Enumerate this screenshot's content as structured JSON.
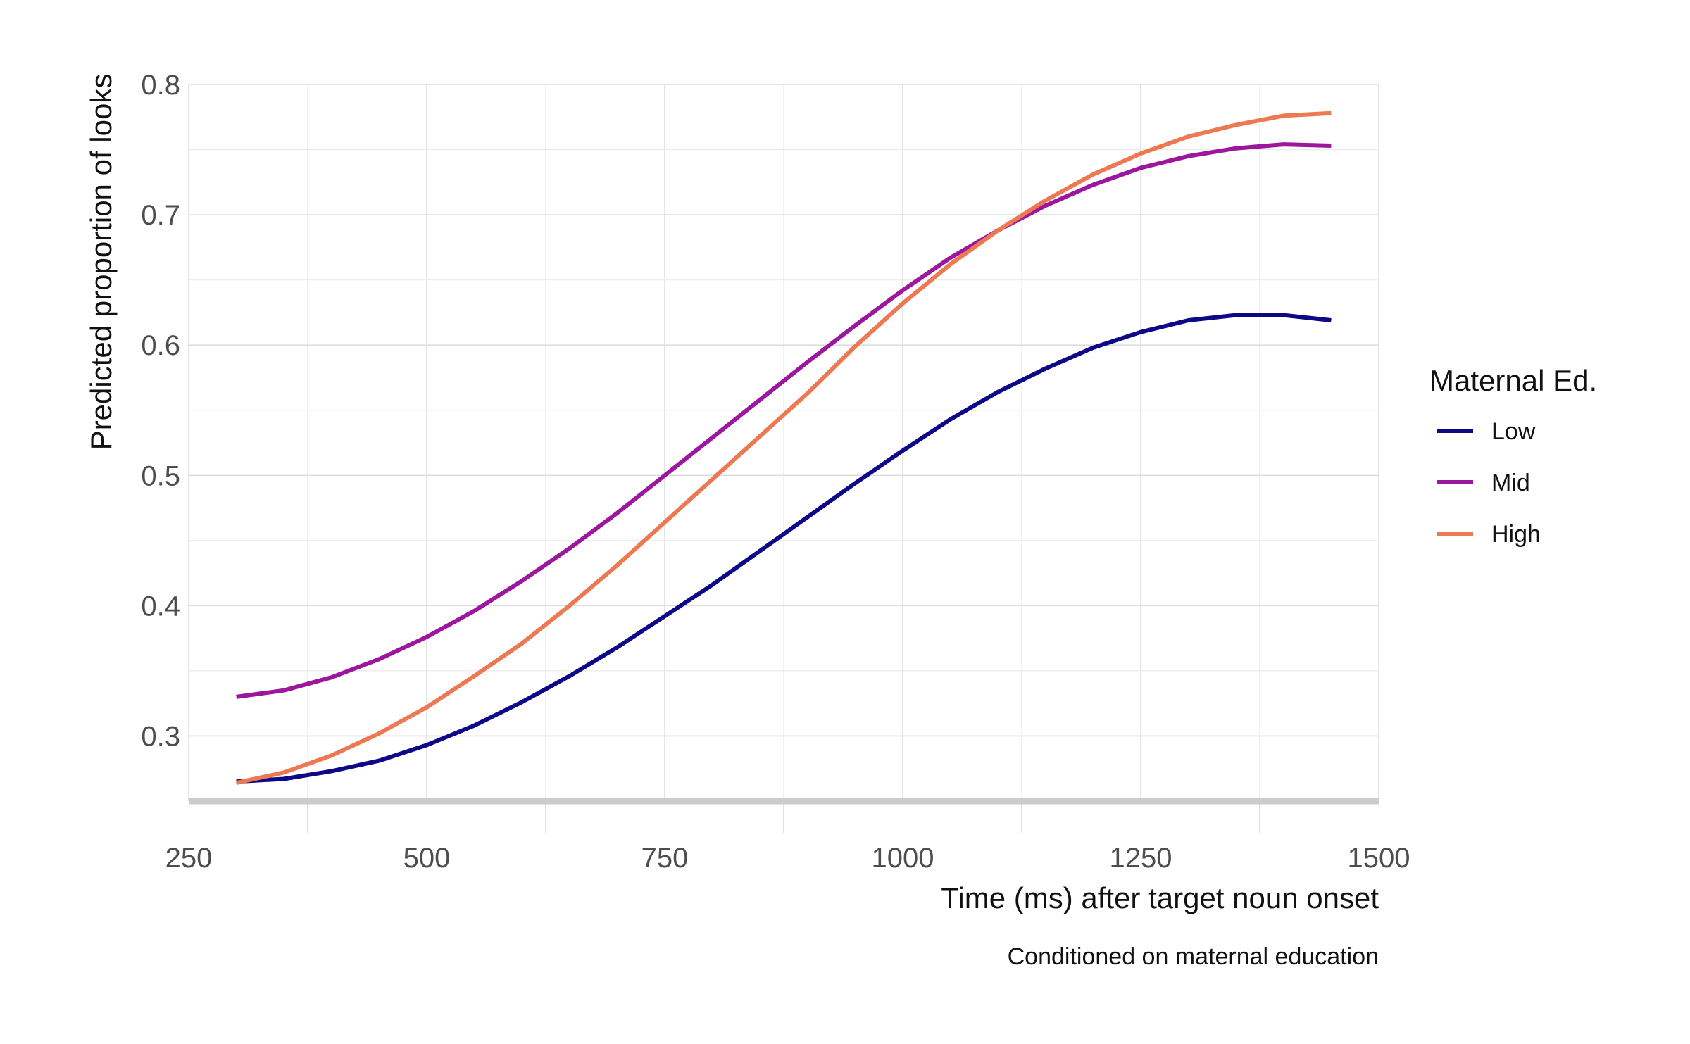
{
  "chart_data": {
    "type": "line",
    "title": "",
    "caption": "Conditioned on maternal education",
    "xlabel": "Time (ms) after target noun onset",
    "ylabel": "Predicted proportion of looks",
    "xlim": [
      250,
      1500
    ],
    "ylim": [
      0.25,
      0.8
    ],
    "x_ticks": [
      250,
      500,
      750,
      1000,
      1250,
      1500
    ],
    "y_ticks": [
      0.3,
      0.4,
      0.5,
      0.6,
      0.7,
      0.8
    ],
    "x_tick_labels": [
      "250",
      "500",
      "750",
      "1000",
      "1250",
      "1500"
    ],
    "y_tick_labels": [
      "0.3",
      "0.4",
      "0.5",
      "0.6",
      "0.7",
      "0.8"
    ],
    "grid": true,
    "legend": {
      "title": "Maternal Ed.",
      "position": "right"
    },
    "x": [
      300,
      350,
      400,
      450,
      500,
      550,
      600,
      650,
      700,
      750,
      800,
      850,
      900,
      950,
      1000,
      1050,
      1100,
      1150,
      1200,
      1250,
      1300,
      1350,
      1400,
      1450
    ],
    "series": [
      {
        "name": "Low",
        "color": "#0d0887",
        "values": [
          0.265,
          0.267,
          0.273,
          0.281,
          0.293,
          0.308,
          0.326,
          0.346,
          0.368,
          0.392,
          0.416,
          0.442,
          0.468,
          0.494,
          0.519,
          0.543,
          0.564,
          0.582,
          0.598,
          0.61,
          0.619,
          0.623,
          0.623,
          0.619
        ]
      },
      {
        "name": "Mid",
        "color": "#9c179e",
        "values": [
          0.33,
          0.335,
          0.345,
          0.359,
          0.376,
          0.396,
          0.419,
          0.444,
          0.471,
          0.5,
          0.529,
          0.558,
          0.587,
          0.615,
          0.642,
          0.667,
          0.688,
          0.707,
          0.723,
          0.736,
          0.745,
          0.751,
          0.754,
          0.753
        ]
      },
      {
        "name": "High",
        "color": "#ed7953",
        "values": [
          0.264,
          0.272,
          0.285,
          0.302,
          0.322,
          0.346,
          0.371,
          0.4,
          0.431,
          0.464,
          0.497,
          0.53,
          0.563,
          0.599,
          0.632,
          0.662,
          0.688,
          0.711,
          0.731,
          0.747,
          0.76,
          0.769,
          0.776,
          0.778
        ]
      }
    ]
  }
}
